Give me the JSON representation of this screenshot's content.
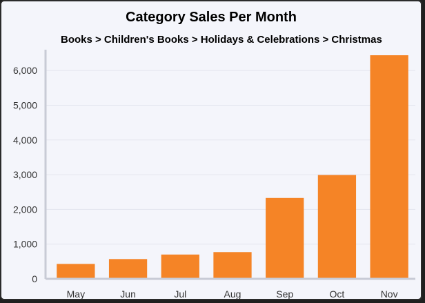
{
  "chart_data": {
    "type": "bar",
    "title": "Category Sales Per Month",
    "subtitle": "Books > Children's Books > Holidays & Celebrations > Christmas",
    "categories": [
      "May",
      "Jun",
      "Jul",
      "Aug",
      "Sep",
      "Oct",
      "Nov"
    ],
    "values": [
      430,
      570,
      700,
      770,
      2330,
      2990,
      6440
    ],
    "ylim": [
      0,
      6600
    ],
    "yticks": [
      0,
      1000,
      2000,
      3000,
      4000,
      5000,
      6000
    ],
    "ytick_labels": [
      "0",
      "1,000",
      "2,000",
      "3,000",
      "4,000",
      "5,000",
      "6,000"
    ],
    "bar_color": "#f58426",
    "grid": true
  }
}
